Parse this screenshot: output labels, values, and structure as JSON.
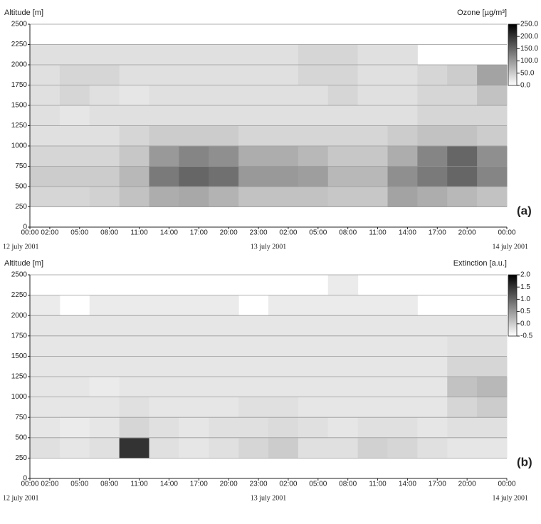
{
  "chart_data": [
    {
      "type": "heatmap",
      "y_label": "Altitude [m]",
      "colorbar_label": "Ozone [µg/m³]",
      "panel_label": "(a)",
      "xlim": [
        0,
        48
      ],
      "xticks": [
        {
          "value": 0,
          "label": "00:00"
        },
        {
          "value": 2,
          "label": "02:00"
        },
        {
          "value": 5,
          "label": "05:00"
        },
        {
          "value": 8,
          "label": "08:00"
        },
        {
          "value": 11,
          "label": "11:00"
        },
        {
          "value": 14,
          "label": "14:00"
        },
        {
          "value": 17,
          "label": "17:00"
        },
        {
          "value": 20,
          "label": "20:00"
        },
        {
          "value": 23,
          "label": "23:00"
        },
        {
          "value": 26,
          "label": "02:00"
        },
        {
          "value": 29,
          "label": "05:00"
        },
        {
          "value": 32,
          "label": "08:00"
        },
        {
          "value": 35,
          "label": "11:00"
        },
        {
          "value": 38,
          "label": "14:00"
        },
        {
          "value": 41,
          "label": "17:00"
        },
        {
          "value": 44,
          "label": "20:00"
        },
        {
          "value": 48,
          "label": "00:00"
        }
      ],
      "dates": [
        {
          "value": 0,
          "label": "12 july 2001"
        },
        {
          "value": 24,
          "label": "13 july 2001"
        },
        {
          "value": 48,
          "label": "14 july 2001"
        }
      ],
      "ylim": [
        0,
        2500
      ],
      "yticks": [
        0,
        250,
        500,
        750,
        1000,
        1250,
        1500,
        1750,
        2000,
        2250,
        2500
      ],
      "grid": true,
      "x_bins": [
        0,
        3,
        6,
        9,
        12,
        15,
        18,
        21,
        24,
        27,
        30,
        33,
        36,
        39,
        42,
        45,
        48
      ],
      "y_bins": [
        250,
        500,
        750,
        1000,
        1250,
        1500,
        1750,
        2000,
        2250,
        2500
      ],
      "clim": [
        0,
        250
      ],
      "cticks": [
        {
          "value": 250,
          "label": "250.0"
        },
        {
          "value": 200,
          "label": "200.0"
        },
        {
          "value": 150,
          "label": "150.0"
        },
        {
          "value": 100,
          "label": "100.0"
        },
        {
          "value": 50,
          "label": "50.0"
        },
        {
          "value": 0,
          "label": "0.0"
        }
      ],
      "values": [
        [
          40,
          40,
          45,
          60,
          80,
          85,
          75,
          60,
          60,
          60,
          55,
          55,
          90,
          80,
          70,
          60
        ],
        [
          50,
          50,
          50,
          70,
          130,
          150,
          140,
          100,
          100,
          95,
          70,
          70,
          110,
          130,
          150,
          120
        ],
        [
          40,
          40,
          40,
          55,
          100,
          120,
          110,
          80,
          80,
          70,
          55,
          55,
          80,
          120,
          150,
          110
        ],
        [
          30,
          30,
          30,
          40,
          50,
          50,
          50,
          40,
          40,
          40,
          40,
          40,
          50,
          60,
          60,
          50
        ],
        [
          30,
          25,
          30,
          30,
          30,
          30,
          30,
          30,
          30,
          30,
          30,
          30,
          30,
          40,
          40,
          40
        ],
        [
          30,
          40,
          30,
          25,
          30,
          30,
          30,
          30,
          30,
          30,
          40,
          30,
          30,
          40,
          40,
          60
        ],
        [
          30,
          40,
          40,
          30,
          30,
          30,
          30,
          30,
          30,
          40,
          40,
          30,
          30,
          40,
          50,
          90
        ],
        [
          30,
          30,
          30,
          30,
          30,
          30,
          30,
          30,
          30,
          40,
          40,
          30,
          30,
          null,
          null,
          null
        ],
        [
          null,
          null,
          null,
          null,
          null,
          null,
          null,
          null,
          null,
          null,
          null,
          null,
          null,
          null,
          null,
          null
        ]
      ]
    },
    {
      "type": "heatmap",
      "y_label": "Altitude [m]",
      "colorbar_label": "Extinction [a.u.]",
      "panel_label": "(b)",
      "xlim": [
        0,
        48
      ],
      "xticks": [
        {
          "value": 0,
          "label": "00:00"
        },
        {
          "value": 2,
          "label": "02:00"
        },
        {
          "value": 5,
          "label": "05:00"
        },
        {
          "value": 8,
          "label": "08:00"
        },
        {
          "value": 11,
          "label": "11:00"
        },
        {
          "value": 14,
          "label": "14:00"
        },
        {
          "value": 17,
          "label": "17:00"
        },
        {
          "value": 20,
          "label": "20:00"
        },
        {
          "value": 23,
          "label": "23:00"
        },
        {
          "value": 26,
          "label": "02:00"
        },
        {
          "value": 29,
          "label": "05:00"
        },
        {
          "value": 32,
          "label": "08:00"
        },
        {
          "value": 35,
          "label": "11:00"
        },
        {
          "value": 38,
          "label": "14:00"
        },
        {
          "value": 41,
          "label": "17:00"
        },
        {
          "value": 44,
          "label": "20:00"
        },
        {
          "value": 48,
          "label": "00:00"
        }
      ],
      "dates": [
        {
          "value": 0,
          "label": "12 july 2001"
        },
        {
          "value": 24,
          "label": "13 july 2001"
        },
        {
          "value": 48,
          "label": "14 july 2001"
        }
      ],
      "ylim": [
        0,
        2500
      ],
      "yticks": [
        0,
        250,
        500,
        750,
        1000,
        1250,
        1500,
        1750,
        2000,
        2250,
        2500
      ],
      "grid": true,
      "x_bins": [
        0,
        3,
        6,
        9,
        12,
        15,
        18,
        21,
        24,
        27,
        30,
        33,
        36,
        39,
        42,
        45,
        48
      ],
      "y_bins": [
        250,
        500,
        750,
        1000,
        1250,
        1500,
        1750,
        2000,
        2250,
        2500
      ],
      "clim": [
        -0.5,
        2.0
      ],
      "cticks": [
        {
          "value": 2,
          "label": "2.0"
        },
        {
          "value": 1.5,
          "label": "1.5"
        },
        {
          "value": 1,
          "label": "1.0"
        },
        {
          "value": 0.5,
          "label": "0.5"
        },
        {
          "value": 0,
          "label": "0.0"
        },
        -0.5
      ],
      "values": [
        [
          -0.2,
          -0.25,
          -0.2,
          1.5,
          -0.2,
          -0.25,
          -0.2,
          -0.1,
          0.0,
          -0.2,
          -0.2,
          -0.05,
          -0.1,
          -0.2,
          -0.25,
          -0.25
        ],
        [
          -0.25,
          -0.3,
          -0.25,
          -0.1,
          -0.2,
          -0.25,
          -0.2,
          -0.2,
          -0.15,
          -0.2,
          -0.25,
          -0.2,
          -0.2,
          -0.25,
          -0.2,
          -0.2
        ],
        [
          -0.25,
          -0.25,
          -0.25,
          -0.2,
          -0.25,
          -0.25,
          -0.25,
          -0.2,
          -0.2,
          -0.25,
          -0.25,
          -0.25,
          -0.25,
          -0.25,
          -0.1,
          0.0
        ],
        [
          -0.25,
          -0.25,
          -0.3,
          -0.25,
          -0.25,
          -0.25,
          -0.25,
          -0.25,
          -0.25,
          -0.25,
          -0.25,
          -0.25,
          -0.25,
          -0.25,
          0.1,
          0.2
        ],
        [
          -0.25,
          -0.25,
          -0.25,
          -0.25,
          -0.25,
          -0.25,
          -0.25,
          -0.25,
          -0.25,
          -0.25,
          -0.25,
          -0.25,
          -0.25,
          -0.25,
          -0.1,
          -0.1
        ],
        [
          -0.25,
          -0.25,
          -0.25,
          -0.25,
          -0.25,
          -0.25,
          -0.25,
          -0.25,
          -0.25,
          -0.25,
          -0.25,
          -0.25,
          -0.25,
          -0.25,
          -0.2,
          -0.2
        ],
        [
          -0.25,
          -0.25,
          -0.25,
          -0.25,
          -0.25,
          -0.25,
          -0.25,
          -0.25,
          -0.25,
          -0.25,
          -0.25,
          -0.25,
          -0.25,
          -0.25,
          -0.25,
          -0.25
        ],
        [
          -0.3,
          null,
          -0.3,
          -0.3,
          -0.3,
          -0.3,
          -0.3,
          null,
          -0.3,
          -0.3,
          -0.3,
          -0.3,
          -0.3,
          null,
          null,
          null
        ],
        [
          null,
          null,
          null,
          null,
          null,
          null,
          null,
          null,
          null,
          null,
          -0.3,
          null,
          null,
          null,
          null,
          null
        ]
      ]
    }
  ]
}
